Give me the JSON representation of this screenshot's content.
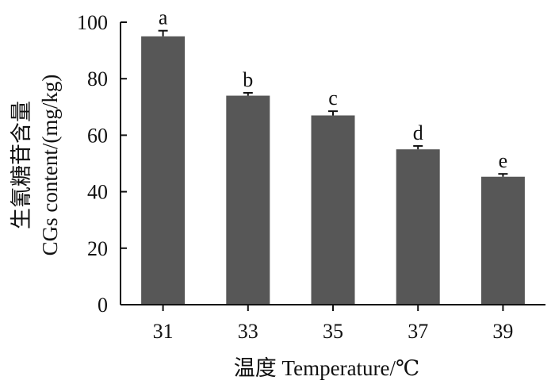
{
  "chart_data": {
    "type": "bar",
    "categories": [
      "31",
      "33",
      "35",
      "37",
      "39"
    ],
    "values": [
      95,
      74,
      67,
      55,
      45.3
    ],
    "errors": [
      2,
      1,
      1.5,
      1.2,
      1
    ],
    "significance_labels": [
      "a",
      "b",
      "c",
      "d",
      "e"
    ],
    "xlabel": "温度 Temperature/℃",
    "ylabel_cn": "生氰糖苷含量",
    "ylabel_en": "CGs content/(mg/kg)",
    "ylim": [
      0,
      100
    ],
    "yticks": [
      "0",
      "20",
      "40",
      "60",
      "80",
      "100"
    ],
    "bar_color": "#575757",
    "grid": false
  }
}
